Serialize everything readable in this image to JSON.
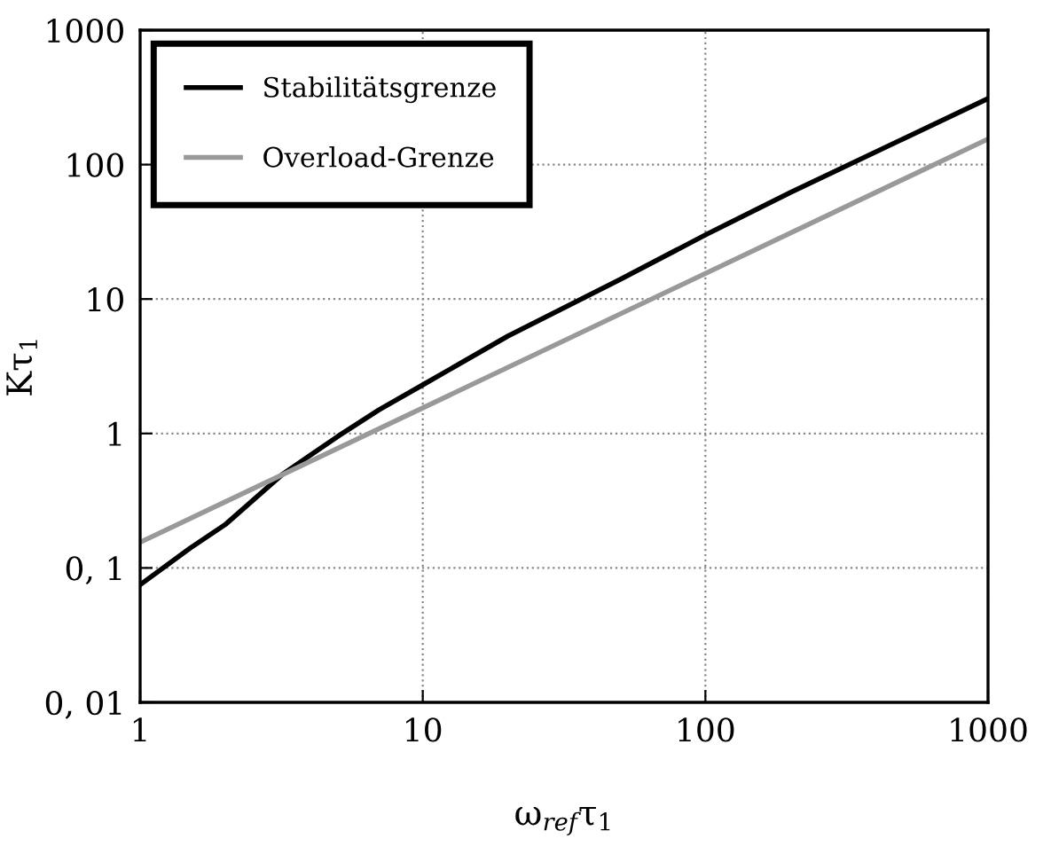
{
  "chart_data": {
    "type": "line",
    "xlabel": "ω$_{ref}$τ$_{1}$",
    "ylabel": "Kτ$_{1}$",
    "log": "xy",
    "grid": true,
    "legend": "top left",
    "line_style": "solid",
    "marker": "none",
    "xlim": [
      1,
      1000
    ],
    "ylim": [
      0.01,
      1000
    ],
    "xticks": [
      1,
      10,
      100,
      1000
    ],
    "yticks": [
      {
        "value": 0.01,
        "label": "0, 01"
      },
      {
        "value": 0.1,
        "label": "0, 1"
      },
      1,
      10,
      100,
      1000
    ],
    "series": [
      {
        "name": "Stabilitätsgrenze",
        "color": "#000000",
        "x": [
          1,
          1.5,
          2,
          3.2,
          5,
          7,
          10,
          20,
          50,
          100,
          200,
          500,
          1000
        ],
        "values": [
          0.075,
          0.14,
          0.21,
          0.5,
          0.95,
          1.5,
          2.3,
          5.3,
          14,
          30,
          62,
          155,
          310
        ]
      },
      {
        "name": "Overload-Grenze",
        "color": "#999999",
        "x": [
          1,
          1000
        ],
        "values": [
          0.155,
          155
        ]
      }
    ]
  }
}
